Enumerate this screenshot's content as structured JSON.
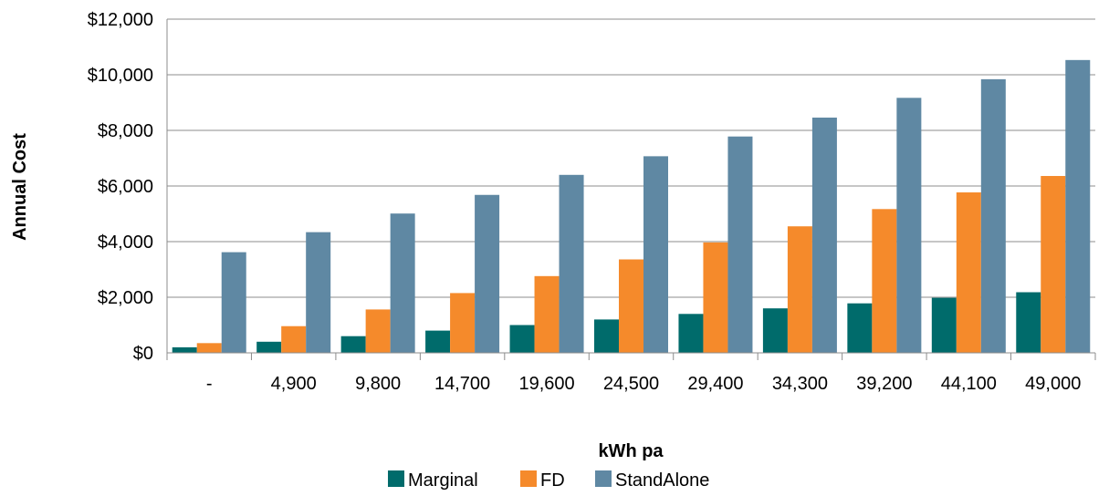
{
  "chart_data": {
    "type": "bar",
    "title": "",
    "xlabel": "kWh pa",
    "ylabel": "Annual Cost",
    "categories": [
      "-",
      "4,900",
      "9,800",
      "14,700",
      "19,600",
      "24,500",
      "29,400",
      "34,300",
      "39,200",
      "44,100",
      "49,000"
    ],
    "ylim": [
      0,
      12000
    ],
    "yticks": [
      0,
      2000,
      4000,
      6000,
      8000,
      10000,
      12000
    ],
    "ytick_labels": [
      "$0",
      "$2,000",
      "$4,000",
      "$6,000",
      "$8,000",
      "$10,000",
      "$12,000"
    ],
    "grid": true,
    "legend_position": "bottom",
    "series": [
      {
        "name": "Marginal",
        "color": "#006b6b",
        "values": [
          200,
          400,
          600,
          800,
          1000,
          1200,
          1400,
          1600,
          1780,
          1980,
          2180
        ]
      },
      {
        "name": "FD",
        "color": "#f58a2b",
        "values": [
          350,
          960,
          1560,
          2150,
          2760,
          3360,
          3970,
          4550,
          5170,
          5770,
          6360
        ]
      },
      {
        "name": "StandAlone",
        "color": "#5f88a3",
        "values": [
          3620,
          4340,
          5010,
          5680,
          6400,
          7070,
          7780,
          8460,
          9170,
          9840,
          10530
        ]
      }
    ]
  }
}
